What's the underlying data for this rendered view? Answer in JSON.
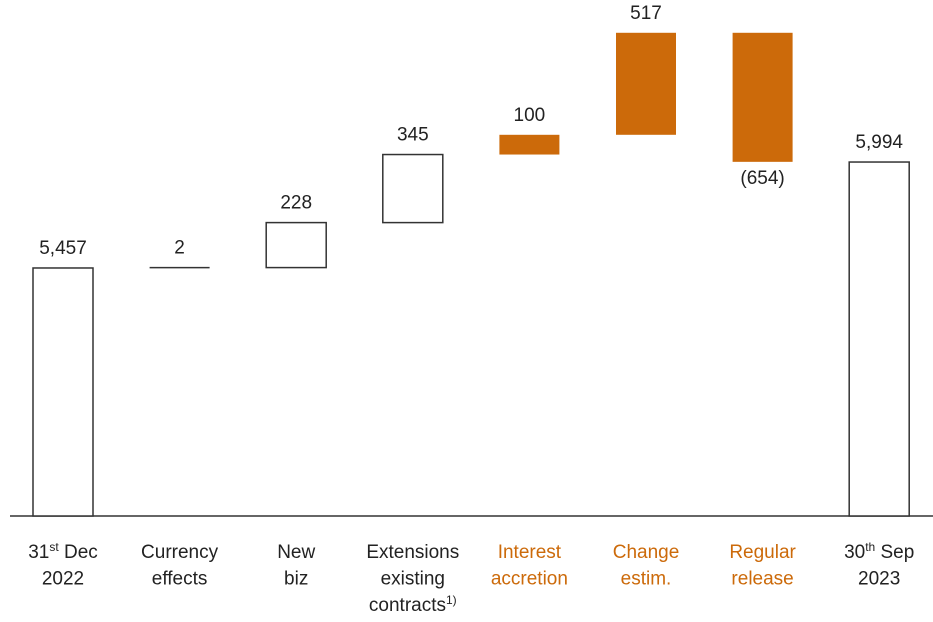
{
  "chart_data": {
    "type": "waterfall",
    "categories": [
      [
        [
          "31",
          {
            "sup": "st"
          },
          " Dec"
        ],
        [
          "2022"
        ]
      ],
      [
        [
          "Currency"
        ],
        [
          "effects"
        ]
      ],
      [
        [
          "New"
        ],
        [
          "biz"
        ]
      ],
      [
        [
          "Extensions"
        ],
        [
          "existing"
        ],
        [
          "contracts",
          {
            "sup": "1)"
          }
        ]
      ],
      [
        [
          "Interest"
        ],
        [
          "accretion"
        ]
      ],
      [
        [
          "Change"
        ],
        [
          "estim."
        ]
      ],
      [
        [
          "Regular"
        ],
        [
          "release"
        ]
      ],
      [
        [
          "30",
          {
            "sup": "th"
          },
          " Sep"
        ],
        [
          "2023"
        ]
      ]
    ],
    "values": [
      5457,
      2,
      228,
      345,
      100,
      517,
      -654,
      5994
    ],
    "value_labels": [
      "5,457",
      "2",
      "228",
      "345",
      "100",
      "517",
      "(654)",
      "5,994"
    ],
    "total_indices": [
      0,
      7
    ],
    "colors": [
      "#ffffff",
      "#ffffff",
      "#ffffff",
      "#ffffff",
      "#cc6a0a",
      "#cc6a0a",
      "#cc6a0a",
      "#ffffff"
    ],
    "label_colors": [
      "#222222",
      "#222222",
      "#222222",
      "#222222",
      "#cc6a0a",
      "#cc6a0a",
      "#cc6a0a",
      "#222222"
    ],
    "ylim": [
      4200,
      6800
    ]
  }
}
